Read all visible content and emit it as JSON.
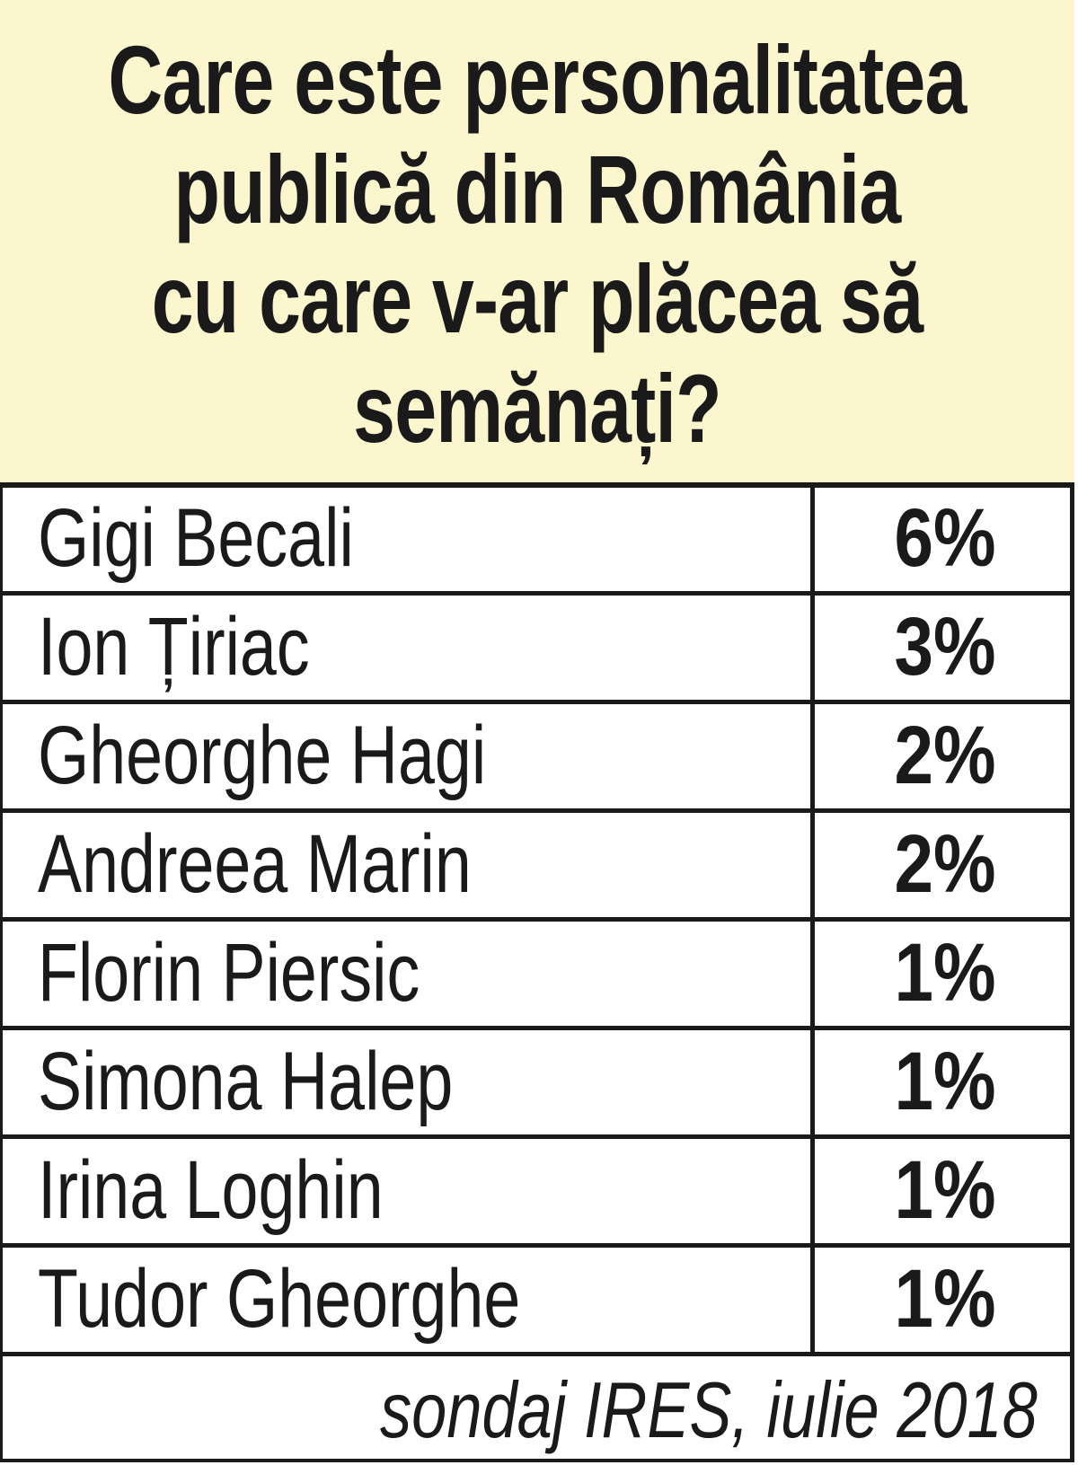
{
  "chart_data": {
    "type": "table",
    "title": "Care este personalitatea publică din România cu care v-ar plăcea să semănați?",
    "title_lines": [
      "Care este personalitatea",
      "publică din România",
      "cu care v-ar plăcea să",
      "semănați?"
    ],
    "rows": [
      {
        "name": "Gigi Becali",
        "value": "6%"
      },
      {
        "name": "Ion Țiriac",
        "value": "3%"
      },
      {
        "name": "Gheorghe Hagi",
        "value": "2%"
      },
      {
        "name": "Andreea Marin",
        "value": "2%"
      },
      {
        "name": "Florin Piersic",
        "value": "1%"
      },
      {
        "name": "Simona Halep",
        "value": "1%"
      },
      {
        "name": "Irina Loghin",
        "value": "1%"
      },
      {
        "name": "Tudor Gheorghe",
        "value": "1%"
      }
    ],
    "source": "sondaj IRES, iulie 2018",
    "colors": {
      "header_bg": "#fcf6cf",
      "border": "#1a1a1a",
      "text": "#1a1a1a"
    }
  }
}
